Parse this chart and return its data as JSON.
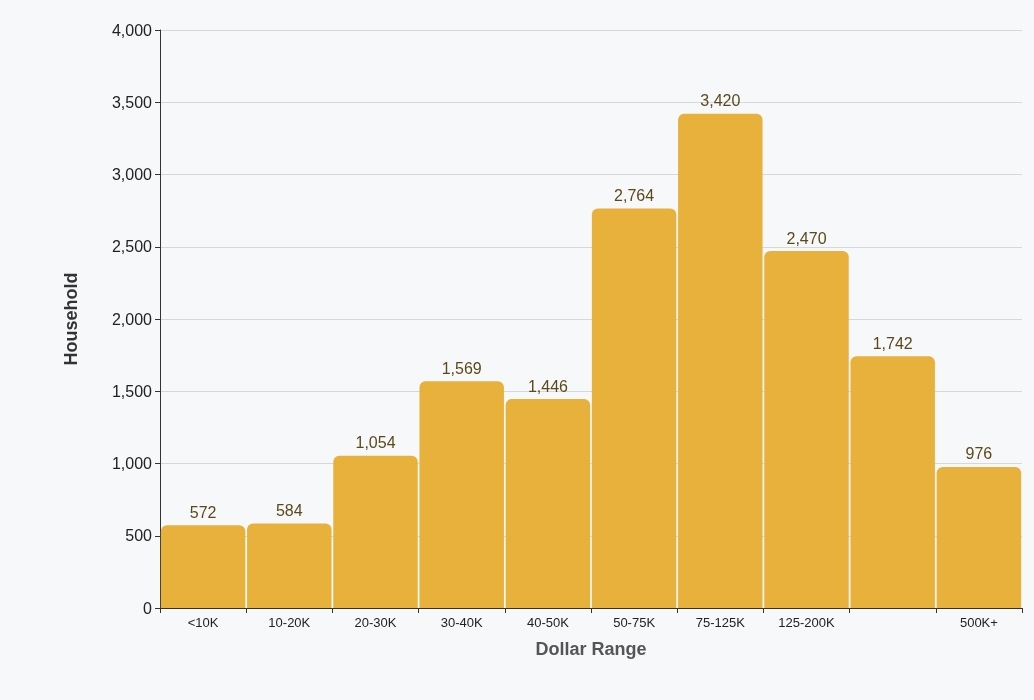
{
  "chart_data": {
    "type": "bar",
    "xlabel": "Dollar Range",
    "ylabel": "Household",
    "categories": [
      "<10K",
      "10-20K",
      "20-30K",
      "30-40K",
      "40-50K",
      "50-75K",
      "75-125K",
      "125-200K",
      null,
      "500K+"
    ],
    "values": [
      572,
      584,
      1054,
      1569,
      1446,
      2764,
      3420,
      2470,
      1742,
      976
    ],
    "value_labels": [
      "572",
      "584",
      "1,054",
      "1,569",
      "1,446",
      "2,764",
      "3,420",
      "2,470",
      "1,742",
      "976"
    ],
    "color": "#e8b13c",
    "ylim": [
      0,
      4000
    ],
    "yticks": [
      0,
      500,
      {
        "value": 1000,
        "label": "1,000"
      },
      {
        "value": 1500,
        "label": "1,500"
      },
      {
        "value": 2000,
        "label": "2,000"
      },
      {
        "value": 2500,
        "label": "2,500"
      },
      {
        "value": 3000,
        "label": "3,000"
      },
      {
        "value": 3500,
        "label": "3,500"
      },
      {
        "value": 4000,
        "label": "4,000"
      }
    ],
    "grid": "y"
  }
}
